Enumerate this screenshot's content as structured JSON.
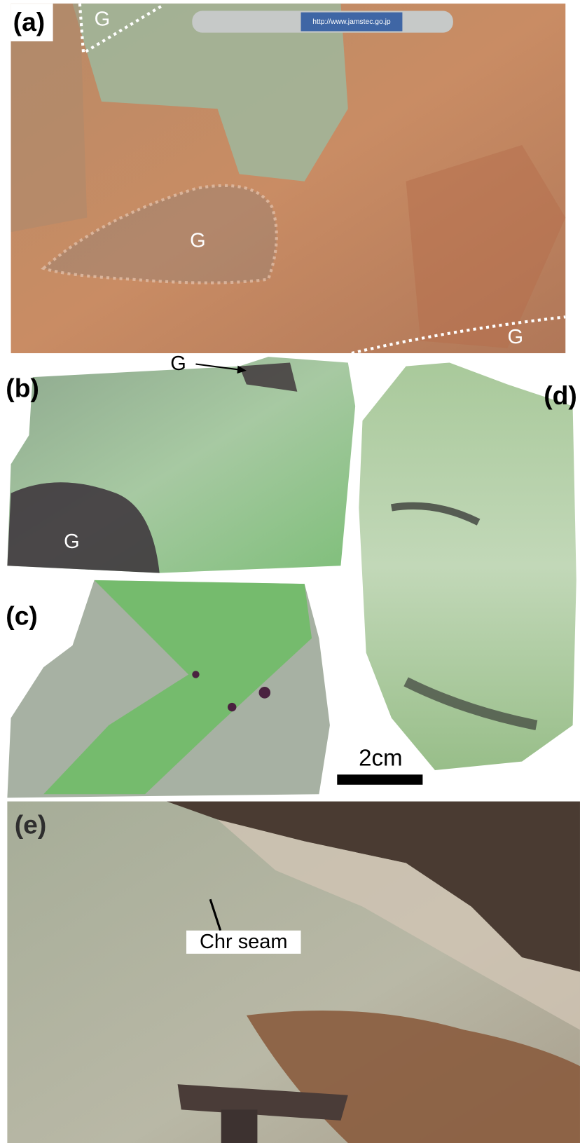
{
  "panels": [
    {
      "label": "(a)",
      "annotations": [
        "G",
        "G",
        "G"
      ],
      "pen_text": "http://www.jamstec.go.jp"
    },
    {
      "label": "(b)",
      "annotations": [
        "G",
        "G"
      ]
    },
    {
      "label": "(c)"
    },
    {
      "label": "(d)"
    },
    {
      "label": "(e)",
      "annotations": [
        "Chr seam"
      ]
    }
  ],
  "scale_bar": {
    "label": "2cm"
  }
}
